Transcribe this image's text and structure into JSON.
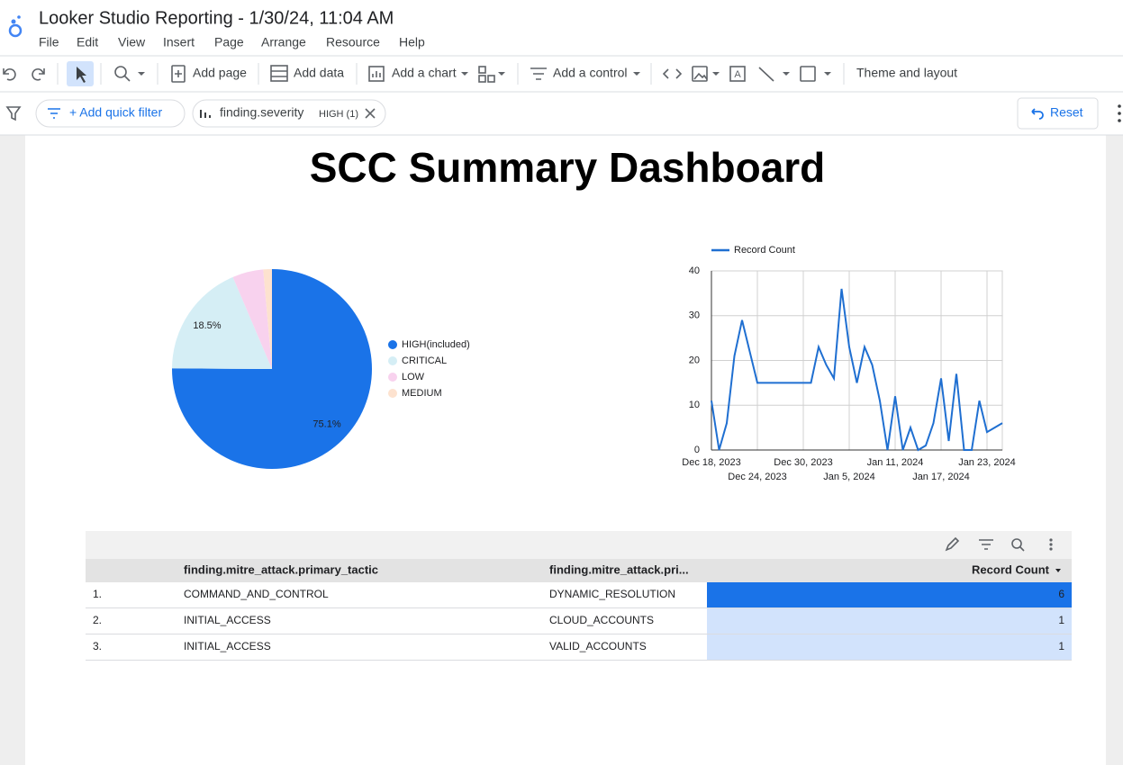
{
  "app": {
    "title": "Looker Studio Reporting - 1/30/24, 11:04 AM",
    "menu": [
      "File",
      "Edit",
      "View",
      "Insert",
      "Page",
      "Arrange",
      "Resource",
      "Help"
    ]
  },
  "toolbar": [
    "Add page",
    "Add data",
    "Add a chart",
    "Add a control",
    "Theme and layout"
  ],
  "filter_bar": {
    "add_filter": "+ Add quick filter",
    "chip": {
      "field": "finding.severity",
      "value": "HIGH (1)"
    },
    "reset": "Reset"
  },
  "report_title": "SCC Summary Dashboard",
  "chart_data": [
    {
      "type": "pie",
      "categories": [
        "HIGH(included)",
        "CRITICAL",
        "LOW",
        "MEDIUM"
      ],
      "values": [
        75.1,
        18.5,
        5,
        1.4
      ],
      "value_labels": [
        "75.1%",
        "18.5%",
        null,
        null
      ],
      "colors": [
        "#1a73e8",
        "#d5eef5",
        "#f8d2ee",
        "#fde2cf"
      ],
      "legend": "right"
    },
    {
      "type": "line",
      "x": [
        "2023-12-18",
        "2023-12-19",
        "2023-12-20",
        "2023-12-21",
        "2023-12-22",
        "2023-12-23",
        "2023-12-24",
        "2023-12-25",
        "2023-12-26",
        "2023-12-27",
        "2023-12-28",
        "2023-12-29",
        "2023-12-30",
        "2023-12-31",
        "2024-01-01",
        "2024-01-02",
        "2024-01-03",
        "2024-01-04",
        "2024-01-05",
        "2024-01-06",
        "2024-01-07",
        "2024-01-08",
        "2024-01-09",
        "2024-01-10",
        "2024-01-11",
        "2024-01-12",
        "2024-01-13",
        "2024-01-14",
        "2024-01-15",
        "2024-01-16",
        "2024-01-17",
        "2024-01-18",
        "2024-01-19",
        "2024-01-20",
        "2024-01-21",
        "2024-01-22",
        "2024-01-23",
        "2024-01-24",
        "2024-01-25"
      ],
      "series": [
        {
          "name": "Record Count",
          "color": "#1f6fd1",
          "values": [
            11,
            0,
            6,
            21,
            29,
            22,
            15,
            15,
            15,
            15,
            15,
            15,
            15,
            15,
            23,
            19,
            16,
            36,
            23,
            15,
            23,
            19,
            11,
            0,
            12,
            0,
            5,
            0,
            1,
            6,
            16,
            2,
            17,
            0,
            0,
            11,
            4,
            5,
            6
          ]
        }
      ],
      "xlim": [
        "2023-12-18",
        "2024-01-25"
      ],
      "xticks": [
        {
          "value": "2023-12-18",
          "label": "Dec 18, 2023"
        },
        {
          "value": "2023-12-24",
          "label": "Dec 24, 2023"
        },
        {
          "value": "2023-12-30",
          "label": "Dec 30, 2023"
        },
        {
          "value": "2024-01-05",
          "label": "Jan 5, 2024"
        },
        {
          "value": "2024-01-11",
          "label": "Jan 11, 2024"
        },
        {
          "value": "2024-01-17",
          "label": "Jan 17, 2024"
        },
        {
          "value": "2024-01-23",
          "label": "Jan 23, 2024"
        }
      ],
      "ylim": [
        0,
        40
      ],
      "yticks": [
        0,
        10,
        20,
        30,
        40
      ],
      "grid": true,
      "legend": "top"
    }
  ],
  "table": {
    "headers": [
      "finding.mitre_attack.primary_tactic",
      "finding.mitre_attack.pri...",
      "Record Count"
    ],
    "rows": [
      [
        "1.",
        "COMMAND_AND_CONTROL",
        "DYNAMIC_RESOLUTION",
        6
      ],
      [
        "2.",
        "INITIAL_ACCESS",
        "CLOUD_ACCOUNTS",
        1
      ],
      [
        "3.",
        "INITIAL_ACCESS",
        "VALID_ACCOUNTS",
        1
      ]
    ],
    "heatmap": {
      "low": "#d2e3fc",
      "high": "#1a73e8"
    }
  }
}
